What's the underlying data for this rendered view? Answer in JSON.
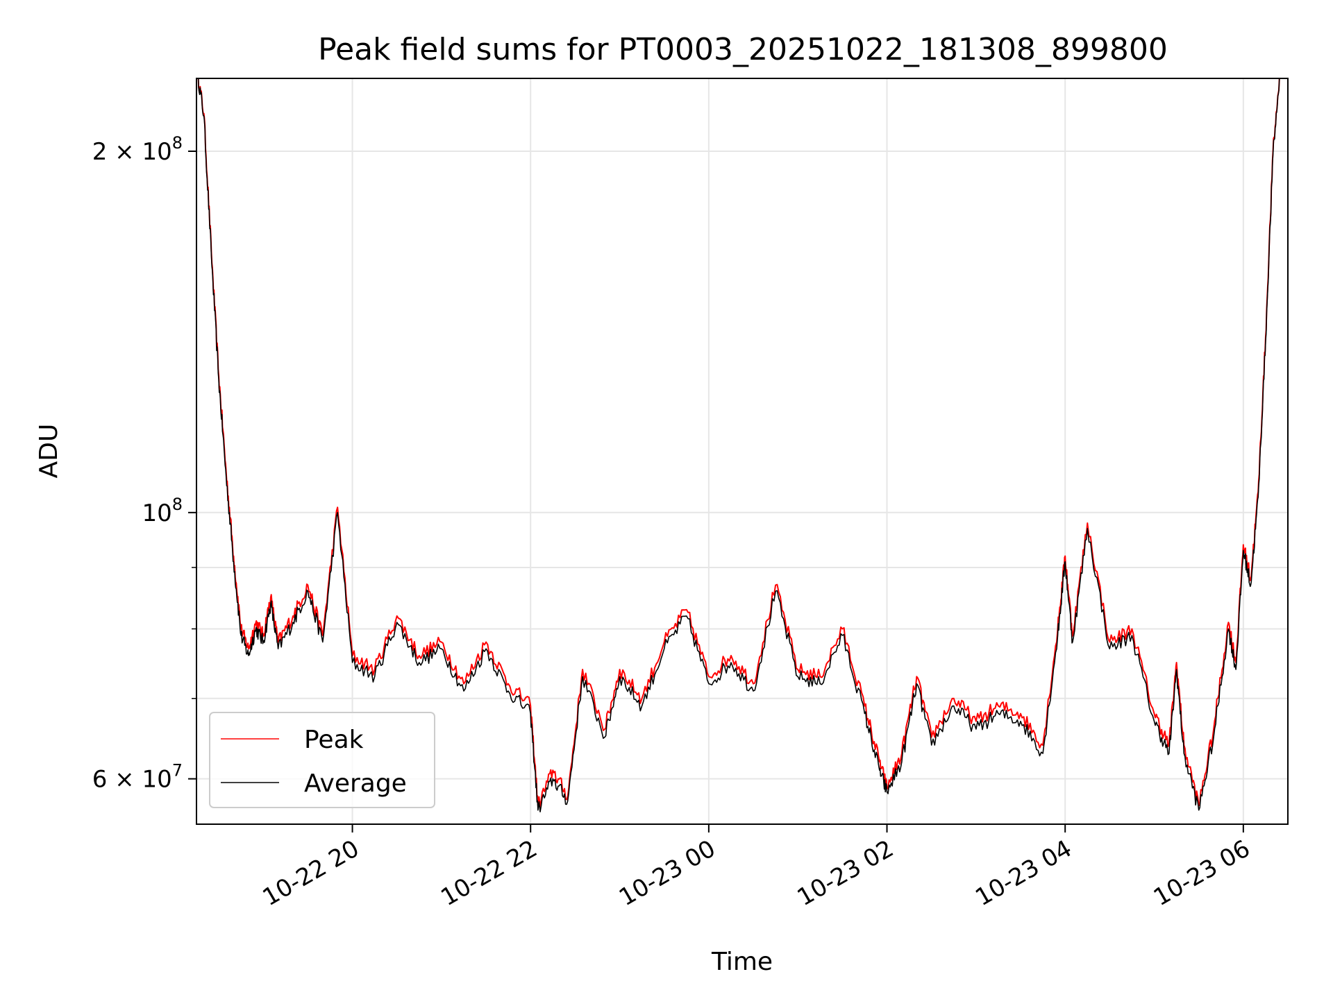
{
  "chart_data": {
    "type": "line",
    "title": "Peak field sums for PT0003_20251022_181308_899800",
    "xlabel": "Time",
    "ylabel": "ADU",
    "yscale": "log",
    "ylim": [
      55000000,
      230000000
    ],
    "xlim": [
      "2025-10-22 18:15",
      "2025-10-23 06:30"
    ],
    "x_ticks": [
      "10-22 20",
      "10-22 22",
      "10-23 00",
      "10-23 02",
      "10-23 04",
      "10-23 06"
    ],
    "y_tick_labels": [
      "6 × 10^7",
      "10^8",
      "2 × 10^8"
    ],
    "grid": true,
    "legend": "lower-left",
    "series": [
      {
        "name": "Peak",
        "color": "#ff0000",
        "x": [
          "2025-10-22 18:15",
          "2025-10-22 18:20",
          "2025-10-22 18:25",
          "2025-10-22 18:30",
          "2025-10-22 18:35",
          "2025-10-22 18:40",
          "2025-10-22 18:45",
          "2025-10-22 18:50",
          "2025-10-22 18:55",
          "2025-10-22 19:00",
          "2025-10-22 19:05",
          "2025-10-22 19:10",
          "2025-10-22 19:20",
          "2025-10-22 19:30",
          "2025-10-22 19:40",
          "2025-10-22 19:50",
          "2025-10-22 20:00",
          "2025-10-22 20:15",
          "2025-10-22 20:30",
          "2025-10-22 20:45",
          "2025-10-22 21:00",
          "2025-10-22 21:15",
          "2025-10-22 21:30",
          "2025-10-22 21:45",
          "2025-10-22 22:00",
          "2025-10-22 22:05",
          "2025-10-22 22:15",
          "2025-10-22 22:25",
          "2025-10-22 22:35",
          "2025-10-22 22:50",
          "2025-10-22 23:00",
          "2025-10-22 23:15",
          "2025-10-22 23:30",
          "2025-10-22 23:45",
          "2025-10-23 00:00",
          "2025-10-23 00:15",
          "2025-10-23 00:30",
          "2025-10-23 00:45",
          "2025-10-23 01:00",
          "2025-10-23 01:15",
          "2025-10-23 01:30",
          "2025-10-23 01:45",
          "2025-10-23 01:55",
          "2025-10-23 02:00",
          "2025-10-23 02:10",
          "2025-10-23 02:20",
          "2025-10-23 02:30",
          "2025-10-23 02:45",
          "2025-10-23 03:00",
          "2025-10-23 03:15",
          "2025-10-23 03:30",
          "2025-10-23 03:45",
          "2025-10-23 03:55",
          "2025-10-23 04:00",
          "2025-10-23 04:05",
          "2025-10-23 04:15",
          "2025-10-23 04:30",
          "2025-10-23 04:45",
          "2025-10-23 05:00",
          "2025-10-23 05:10",
          "2025-10-23 05:15",
          "2025-10-23 05:20",
          "2025-10-23 05:30",
          "2025-10-23 05:40",
          "2025-10-23 05:50",
          "2025-10-23 05:55",
          "2025-10-23 06:00",
          "2025-10-23 06:05",
          "2025-10-23 06:10",
          "2025-10-23 06:15",
          "2025-10-23 06:20",
          "2025-10-23 06:25"
        ],
        "values": [
          235000000,
          215000000,
          165000000,
          130000000,
          108000000,
          92000000,
          80000000,
          77000000,
          81000000,
          79000000,
          85000000,
          78000000,
          82000000,
          87000000,
          79000000,
          101000000,
          76000000,
          74000000,
          82000000,
          76000000,
          78000000,
          72000000,
          78000000,
          72000000,
          69000000,
          57000000,
          61000000,
          58000000,
          74000000,
          66000000,
          74000000,
          70000000,
          78000000,
          83000000,
          73000000,
          76000000,
          72000000,
          87000000,
          74000000,
          73000000,
          80000000,
          69000000,
          62000000,
          59000000,
          63000000,
          73000000,
          65000000,
          70000000,
          67000000,
          69000000,
          68000000,
          64000000,
          80000000,
          92000000,
          79000000,
          98000000,
          78000000,
          80000000,
          68000000,
          64000000,
          75000000,
          64000000,
          57000000,
          66000000,
          81000000,
          75000000,
          94000000,
          88000000,
          104000000,
          140000000,
          200000000,
          235000000
        ]
      },
      {
        "name": "Average",
        "color": "#000000",
        "x": [
          "2025-10-22 18:15",
          "2025-10-22 18:20",
          "2025-10-22 18:25",
          "2025-10-22 18:30",
          "2025-10-22 18:35",
          "2025-10-22 18:40",
          "2025-10-22 18:45",
          "2025-10-22 18:50",
          "2025-10-22 18:55",
          "2025-10-22 19:00",
          "2025-10-22 19:05",
          "2025-10-22 19:10",
          "2025-10-22 19:20",
          "2025-10-22 19:30",
          "2025-10-22 19:40",
          "2025-10-22 19:50",
          "2025-10-22 20:00",
          "2025-10-22 20:15",
          "2025-10-22 20:30",
          "2025-10-22 20:45",
          "2025-10-22 21:00",
          "2025-10-22 21:15",
          "2025-10-22 21:30",
          "2025-10-22 21:45",
          "2025-10-22 22:00",
          "2025-10-22 22:05",
          "2025-10-22 22:15",
          "2025-10-22 22:25",
          "2025-10-22 22:35",
          "2025-10-22 22:50",
          "2025-10-22 23:00",
          "2025-10-22 23:15",
          "2025-10-22 23:30",
          "2025-10-22 23:45",
          "2025-10-23 00:00",
          "2025-10-23 00:15",
          "2025-10-23 00:30",
          "2025-10-23 00:45",
          "2025-10-23 01:00",
          "2025-10-23 01:15",
          "2025-10-23 01:30",
          "2025-10-23 01:45",
          "2025-10-23 01:55",
          "2025-10-23 02:00",
          "2025-10-23 02:10",
          "2025-10-23 02:20",
          "2025-10-23 02:30",
          "2025-10-23 02:45",
          "2025-10-23 03:00",
          "2025-10-23 03:15",
          "2025-10-23 03:30",
          "2025-10-23 03:45",
          "2025-10-23 03:55",
          "2025-10-23 04:00",
          "2025-10-23 04:05",
          "2025-10-23 04:15",
          "2025-10-23 04:30",
          "2025-10-23 04:45",
          "2025-10-23 05:00",
          "2025-10-23 05:10",
          "2025-10-23 05:15",
          "2025-10-23 05:20",
          "2025-10-23 05:30",
          "2025-10-23 05:40",
          "2025-10-23 05:50",
          "2025-10-23 05:55",
          "2025-10-23 06:00",
          "2025-10-23 06:05",
          "2025-10-23 06:10",
          "2025-10-23 06:15",
          "2025-10-23 06:20",
          "2025-10-23 06:25"
        ],
        "values": [
          235000000,
          214000000,
          164000000,
          129000000,
          107000000,
          91000000,
          79000000,
          76000000,
          80000000,
          78000000,
          84000000,
          77000000,
          81000000,
          86000000,
          78000000,
          100000000,
          75000000,
          73000000,
          81000000,
          75000000,
          77000000,
          71000000,
          77000000,
          71000000,
          68000000,
          56500000,
          60000000,
          57500000,
          73000000,
          65000000,
          73000000,
          69000000,
          77000000,
          82000000,
          72000000,
          75000000,
          71000000,
          86000000,
          73000000,
          72000000,
          79000000,
          68000000,
          61000000,
          58500000,
          62000000,
          72000000,
          64000000,
          69000000,
          66000000,
          68000000,
          67000000,
          63000000,
          79000000,
          91000000,
          78000000,
          97000000,
          77000000,
          79000000,
          67000000,
          63000000,
          74000000,
          63000000,
          56500000,
          65000000,
          80000000,
          74000000,
          93000000,
          87000000,
          103000000,
          139000000,
          199000000,
          235000000
        ]
      }
    ]
  }
}
